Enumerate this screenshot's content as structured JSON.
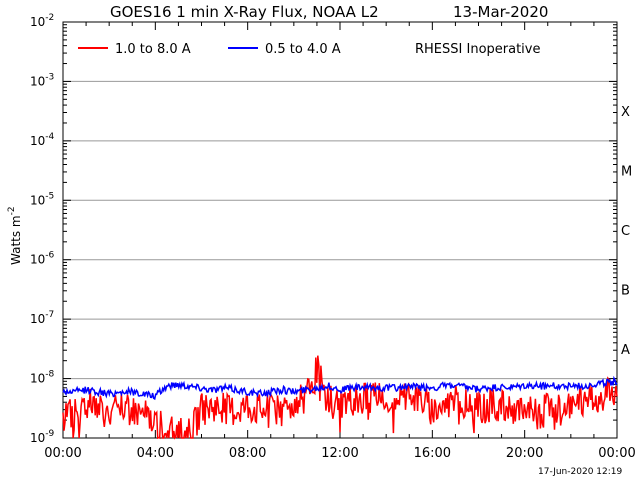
{
  "chart_data": {
    "type": "line",
    "title": "GOES16 1 min X-Ray Flux, NOAA L2",
    "date": "13-Mar-2020",
    "ylabel": "Watts m",
    "ylabel_exp": "-2",
    "y_scale": "log",
    "ylim": [
      1e-09,
      0.01
    ],
    "y_ticks": [
      {
        "base": "10",
        "exp": "-2"
      },
      {
        "base": "10",
        "exp": "-3"
      },
      {
        "base": "10",
        "exp": "-4"
      },
      {
        "base": "10",
        "exp": "-5"
      },
      {
        "base": "10",
        "exp": "-6"
      },
      {
        "base": "10",
        "exp": "-7"
      },
      {
        "base": "10",
        "exp": "-8"
      },
      {
        "base": "10",
        "exp": "-9"
      }
    ],
    "x_ticks": [
      "00:00",
      "04:00",
      "08:00",
      "12:00",
      "16:00",
      "20:00",
      "00:00"
    ],
    "xlim_hours": [
      0,
      24
    ],
    "flare_classes": [
      {
        "label": "X",
        "value": 0.0001
      },
      {
        "label": "M",
        "value": 1e-05
      },
      {
        "label": "C",
        "value": 1e-06
      },
      {
        "label": "B",
        "value": 1e-07
      },
      {
        "label": "A",
        "value": 1e-08
      }
    ],
    "grid": true,
    "legend_position": "top-left",
    "annotation": "RHESSI Inoperative",
    "footer_timestamp": "17-Jun-2020 12:19",
    "series": [
      {
        "name": "1.0 to 8.0 A",
        "color": "#ff0000",
        "x": [
          0,
          0.5,
          1,
          1.5,
          2,
          2.5,
          3,
          3.5,
          4,
          4.5,
          5,
          5.5,
          6,
          6.5,
          7,
          7.5,
          8,
          8.5,
          9,
          9.5,
          10,
          10.5,
          10.8,
          11,
          11.2,
          11.5,
          12,
          12.5,
          13,
          13.5,
          14,
          14.5,
          15,
          15.5,
          16,
          16.5,
          17,
          17.5,
          18,
          18.5,
          19,
          19.5,
          20,
          20.5,
          21,
          21.5,
          22,
          22.5,
          23,
          23.5,
          24
        ],
        "y": [
          3e-09,
          2.5e-09,
          4e-09,
          3.5e-09,
          2.5e-09,
          3e-09,
          3e-09,
          2.5e-09,
          2e-09,
          1.2e-09,
          1.2e-09,
          1.2e-09,
          3e-09,
          3.5e-09,
          3e-09,
          3e-09,
          3.5e-09,
          3e-09,
          3e-09,
          3e-09,
          4e-09,
          5e-09,
          6e-09,
          1.6e-08,
          8e-09,
          4e-09,
          4e-09,
          4.5e-09,
          4.5e-09,
          5e-09,
          4.5e-09,
          5e-09,
          5e-09,
          4.5e-09,
          3e-09,
          3.5e-09,
          4.5e-09,
          4e-09,
          3e-09,
          3.5e-09,
          3.5e-09,
          3e-09,
          3e-09,
          2.5e-09,
          3e-09,
          3e-09,
          3.5e-09,
          4e-09,
          5e-09,
          5.5e-09,
          6e-09
        ]
      },
      {
        "name": "0.5 to 4.0 A",
        "color": "#0000ff",
        "x": [
          0,
          0.5,
          1,
          1.5,
          2,
          2.5,
          3,
          3.5,
          4,
          4.5,
          5,
          5.5,
          6,
          6.5,
          7,
          7.5,
          8,
          8.5,
          9,
          9.5,
          10,
          10.5,
          11,
          11.5,
          12,
          12.5,
          13,
          13.5,
          14,
          14.5,
          15,
          15.5,
          16,
          16.5,
          17,
          17.5,
          18,
          18.5,
          19,
          19.5,
          20,
          20.5,
          21,
          21.5,
          22,
          22.5,
          23,
          23.5,
          24
        ],
        "y": [
          6e-09,
          6e-09,
          6.5e-09,
          6e-09,
          5.5e-09,
          6e-09,
          6e-09,
          5.5e-09,
          5e-09,
          7.5e-09,
          8e-09,
          7.5e-09,
          7e-09,
          6.5e-09,
          7e-09,
          6.5e-09,
          6e-09,
          5.5e-09,
          6e-09,
          6.5e-09,
          6e-09,
          6.5e-09,
          7e-09,
          7.5e-09,
          6.5e-09,
          7e-09,
          7e-09,
          7e-09,
          7e-09,
          7e-09,
          7.5e-09,
          7e-09,
          7e-09,
          7.5e-09,
          7.5e-09,
          7e-09,
          6.5e-09,
          7e-09,
          7e-09,
          7e-09,
          7.5e-09,
          7.5e-09,
          7.5e-09,
          7.5e-09,
          7.5e-09,
          7.5e-09,
          8e-09,
          8.5e-09,
          9e-09
        ]
      }
    ]
  }
}
